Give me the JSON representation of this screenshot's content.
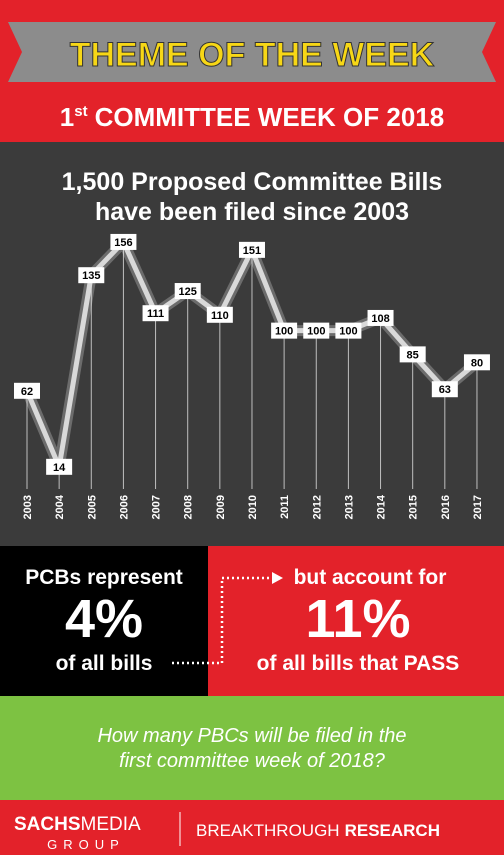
{
  "header": {
    "title": "THEME OF THE WEEK",
    "subtitle": {
      "number": "1",
      "suffix": "st",
      "rest": "COMMITTEE WEEK OF 2018"
    }
  },
  "chart_data": {
    "type": "line",
    "title": [
      "1,500 Proposed Committee Bills",
      "have been filed since 2003"
    ],
    "categories": [
      "2003",
      "2004",
      "2005",
      "2006",
      "2007",
      "2008",
      "2009",
      "2010",
      "2011",
      "2012",
      "2013",
      "2014",
      "2015",
      "2016",
      "2017"
    ],
    "values": [
      62,
      14,
      135,
      156,
      111,
      125,
      110,
      151,
      100,
      100,
      100,
      108,
      85,
      63,
      80
    ],
    "color": "#d9d9d9",
    "ylim": [
      0,
      160
    ]
  },
  "stats": {
    "left": {
      "top": "PCBs represent",
      "big": "4%",
      "bottom": "of all bills"
    },
    "right": {
      "top": "but account for",
      "big": "11%",
      "bottom": "of all bills that PASS"
    }
  },
  "question": [
    "How many PBCs will be filed in the",
    "first committee week of 2018?"
  ],
  "footer": {
    "brand_bold": "SACHS",
    "brand_light": "MEDIA",
    "brand_sub": "GROUP",
    "tagline_light": "BREAKTHROUGH",
    "tagline_bold": "RESEARCH"
  }
}
